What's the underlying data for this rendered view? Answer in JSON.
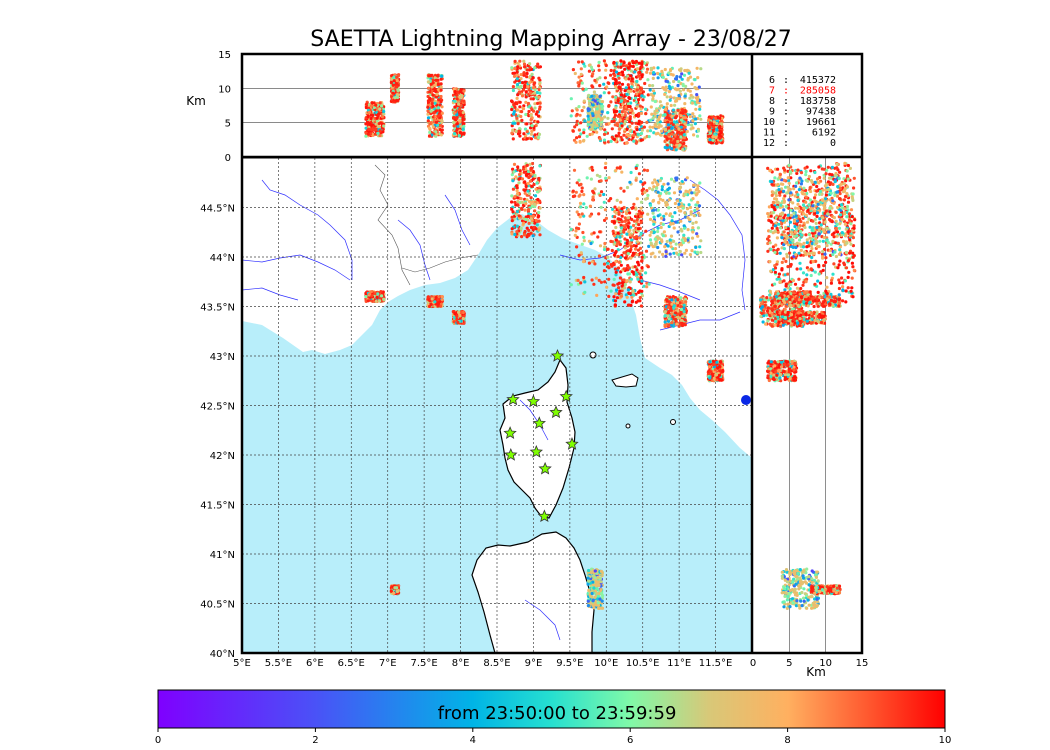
{
  "chart_data": {
    "type": "scatter",
    "title": "SAETTA Lightning Mapping Array - 23/08/27",
    "colorbar_label": "from 23:50:00 to 23:59:59",
    "map": {
      "lon_range": [
        5,
        12
      ],
      "lat_range": [
        40,
        45
      ],
      "lon_ticks": [
        "5°E",
        "5.5°E",
        "6°E",
        "6.5°E",
        "7°E",
        "7.5°E",
        "8°E",
        "8.5°E",
        "9°E",
        "9.5°E",
        "10°E",
        "10.5°E",
        "11°E",
        "11.5°E"
      ],
      "lat_ticks": [
        "40°N",
        "40.5°N",
        "41°N",
        "41.5°N",
        "42°N",
        "42.5°N",
        "43°N",
        "43.5°N",
        "44°N",
        "44.5°N"
      ],
      "grid": true
    },
    "altitude_axis": {
      "label": "Km",
      "range": [
        0,
        15
      ],
      "ticks": [
        "0",
        "5",
        "10",
        "15"
      ]
    },
    "colorbar": {
      "range": [
        0,
        10
      ],
      "ticks": [
        "0",
        "2",
        "4",
        "6",
        "8",
        "10"
      ],
      "colormap": "rainbow"
    },
    "station_counts": [
      {
        "stations": "6",
        "count": "415372",
        "color": "#000000"
      },
      {
        "stations": "7",
        "count": "285058",
        "color": "#ff0000"
      },
      {
        "stations": "8",
        "count": "183758",
        "color": "#000000"
      },
      {
        "stations": "9",
        "count": "97438",
        "color": "#000000"
      },
      {
        "stations": "10",
        "count": "19661",
        "color": "#000000"
      },
      {
        "stations": "11",
        "count": "6192",
        "color": "#000000"
      },
      {
        "stations": "12",
        "count": "0",
        "color": "#000000"
      }
    ],
    "stations": [
      {
        "lon": 9.33,
        "lat": 43.0
      },
      {
        "lon": 8.72,
        "lat": 42.56
      },
      {
        "lon": 9.0,
        "lat": 42.54
      },
      {
        "lon": 9.45,
        "lat": 42.59
      },
      {
        "lon": 9.08,
        "lat": 42.32
      },
      {
        "lon": 9.31,
        "lat": 42.43
      },
      {
        "lon": 8.68,
        "lat": 42.22
      },
      {
        "lon": 9.53,
        "lat": 42.11
      },
      {
        "lon": 8.69,
        "lat": 42.0
      },
      {
        "lon": 9.04,
        "lat": 42.03
      },
      {
        "lon": 9.16,
        "lat": 41.86
      },
      {
        "lon": 9.15,
        "lat": 41.38
      }
    ],
    "lightning_clusters": [
      {
        "lon": [
          8.7,
          9.1
        ],
        "lat": [
          44.2,
          44.95
        ],
        "alt": [
          2.5,
          14
        ],
        "time": 9.8
      },
      {
        "lon": [
          9.5,
          10.6
        ],
        "lat": [
          43.6,
          44.95
        ],
        "alt": [
          2,
          14
        ],
        "time": 9.5
      },
      {
        "lon": [
          10.1,
          10.5
        ],
        "lat": [
          43.5,
          44.5
        ],
        "alt": [
          2,
          14
        ],
        "time": 9.9
      },
      {
        "lon": [
          10.6,
          11.3
        ],
        "lat": [
          44.0,
          44.8
        ],
        "alt": [
          3,
          13
        ],
        "time": 7.8
      },
      {
        "lon": [
          10.8,
          11.1
        ],
        "lat": [
          43.3,
          43.6
        ],
        "alt": [
          1,
          7
        ],
        "time": 9.6
      },
      {
        "lon": [
          11.4,
          11.6
        ],
        "lat": [
          42.75,
          42.95
        ],
        "alt": [
          2,
          6
        ],
        "time": 9.8
      },
      {
        "lon": [
          6.7,
          6.95
        ],
        "lat": [
          43.55,
          43.65
        ],
        "alt": [
          3,
          8
        ],
        "time": 9.8
      },
      {
        "lon": [
          7.55,
          7.75
        ],
        "lat": [
          43.5,
          43.6
        ],
        "alt": [
          3,
          12
        ],
        "time": 9.7
      },
      {
        "lon": [
          7.9,
          8.05
        ],
        "lat": [
          43.33,
          43.45
        ],
        "alt": [
          3,
          10
        ],
        "time": 9.8
      },
      {
        "lon": [
          9.75,
          9.95
        ],
        "lat": [
          40.45,
          40.85
        ],
        "alt": [
          4,
          9
        ],
        "time": 7.5
      },
      {
        "lon": [
          7.05,
          7.15
        ],
        "lat": [
          40.6,
          40.68
        ],
        "alt": [
          8,
          12
        ],
        "time": 9.7
      }
    ]
  }
}
